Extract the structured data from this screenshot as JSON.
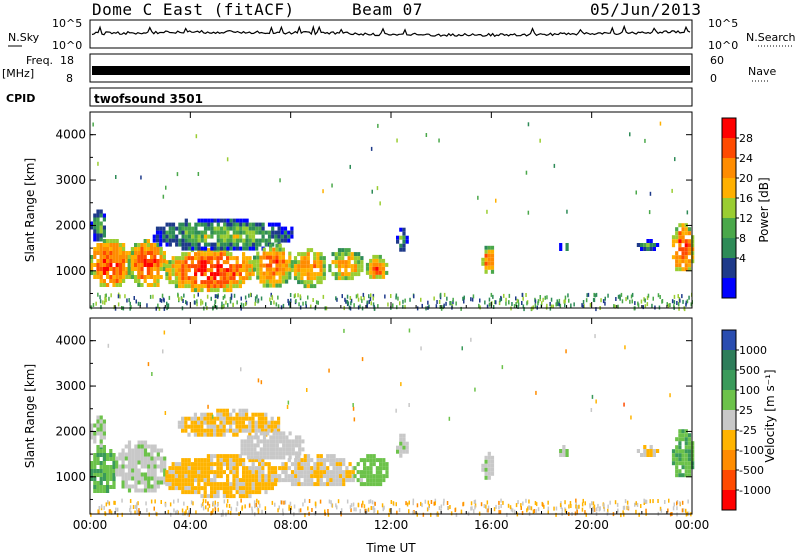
{
  "header": {
    "station": "Dome C East (fitACF)",
    "beam": "Beam 07",
    "date": "05/Jun/2013"
  },
  "top_panels": {
    "nsky_label": "N.Sky",
    "nsearch_label": "N.Search",
    "noise_ticks": [
      "10^5",
      "10^0"
    ],
    "freq_label_line1": "Freq.",
    "freq_label_line2": "[MHz]",
    "freq_ticks": [
      "18",
      "8"
    ],
    "nave_label": "Nave",
    "nave_ticks": [
      "60",
      "0"
    ],
    "cpid_label": "CPID",
    "cpid_value": "twofsound 3501"
  },
  "colorbars": {
    "power": {
      "label": "Power [dB]",
      "ticks": [
        "28",
        "24",
        "20",
        "16",
        "12",
        "8",
        "4"
      ],
      "colors": [
        "#ff0000",
        "#ff4a00",
        "#ff8c00",
        "#ffb000",
        "#9acd32",
        "#4aa84a",
        "#2e8b57",
        "#1e3a8a",
        "#0000ff"
      ]
    },
    "velocity": {
      "label": "Velocity [m s⁻¹]",
      "ticks": [
        "1000",
        "500",
        "100",
        "25",
        "-25",
        "-100",
        "-500",
        "-1000"
      ],
      "colors": [
        "#2a4db0",
        "#2e7d5a",
        "#3a9a5a",
        "#6cc24a",
        "#c8c8c8",
        "#ffb400",
        "#ff8c00",
        "#ff4a00",
        "#ff0000"
      ]
    }
  },
  "axes": {
    "y_label": "Slant Range [km]",
    "x_label": "Time UT",
    "y_ticks": [
      "1000",
      "2000",
      "3000",
      "4000"
    ],
    "x_ticks": [
      "00:00",
      "04:00",
      "08:00",
      "12:00",
      "16:00",
      "20:00",
      "00:00"
    ]
  },
  "chart_data": [
    {
      "type": "heatmap",
      "name": "power",
      "xlabel": "Time UT",
      "ylabel": "Slant Range [km]",
      "xlim": [
        0,
        24
      ],
      "ylim": [
        180,
        4500
      ],
      "colorbar_label": "Power [dB]",
      "colorbar_range": [
        0,
        30
      ],
      "blobs": [
        {
          "t0": 0.0,
          "t1": 1.6,
          "r0": 650,
          "r1": 1700,
          "p": 26
        },
        {
          "t0": 0.0,
          "t1": 0.6,
          "r0": 1700,
          "r1": 2350,
          "p": 13
        },
        {
          "t0": 1.5,
          "t1": 3.0,
          "r0": 700,
          "r1": 1700,
          "p": 25
        },
        {
          "t0": 3.0,
          "t1": 6.5,
          "r0": 600,
          "r1": 1500,
          "p": 27
        },
        {
          "t0": 2.5,
          "t1": 8.0,
          "r0": 1500,
          "r1": 2150,
          "p": 14
        },
        {
          "t0": 6.5,
          "t1": 8.0,
          "r0": 700,
          "r1": 1600,
          "p": 24
        },
        {
          "t0": 8.0,
          "t1": 9.4,
          "r0": 700,
          "r1": 1500,
          "p": 23
        },
        {
          "t0": 9.5,
          "t1": 10.8,
          "r0": 800,
          "r1": 1500,
          "p": 22
        },
        {
          "t0": 11.0,
          "t1": 11.8,
          "r0": 850,
          "r1": 1350,
          "p": 24
        },
        {
          "t0": 12.2,
          "t1": 12.6,
          "r0": 1500,
          "r1": 1950,
          "p": 13
        },
        {
          "t0": 15.6,
          "t1": 16.1,
          "r0": 1000,
          "r1": 1550,
          "p": 24
        },
        {
          "t0": 18.7,
          "t1": 19.0,
          "r0": 1450,
          "r1": 1700,
          "p": 14
        },
        {
          "t0": 21.8,
          "t1": 22.6,
          "r0": 1500,
          "r1": 1700,
          "p": 13
        },
        {
          "t0": 23.2,
          "t1": 24.0,
          "r0": 1000,
          "r1": 2050,
          "p": 26
        }
      ]
    },
    {
      "type": "heatmap",
      "name": "velocity",
      "xlabel": "Time UT",
      "ylabel": "Slant Range [km]",
      "xlim": [
        0,
        24
      ],
      "ylim": [
        180,
        4500
      ],
      "colorbar_label": "Velocity [m s⁻¹]",
      "colorbar_range": [
        -1000,
        1000
      ],
      "blobs": [
        {
          "t0": 0.0,
          "t1": 1.0,
          "r0": 650,
          "r1": 1700,
          "v": 300
        },
        {
          "t0": 0.0,
          "t1": 0.6,
          "r0": 1700,
          "r1": 2350,
          "v": 80
        },
        {
          "t0": 1.0,
          "t1": 3.0,
          "r0": 700,
          "r1": 1800,
          "v": 60
        },
        {
          "t0": 3.0,
          "t1": 7.5,
          "r0": 600,
          "r1": 1500,
          "v": -150
        },
        {
          "t0": 3.5,
          "t1": 7.5,
          "r0": 1900,
          "r1": 2500,
          "v": -120
        },
        {
          "t0": 6.0,
          "t1": 8.5,
          "r0": 1400,
          "r1": 2000,
          "v": 10
        },
        {
          "t0": 7.5,
          "t1": 10.5,
          "r0": 800,
          "r1": 1500,
          "v": -80
        },
        {
          "t0": 10.5,
          "t1": 11.8,
          "r0": 850,
          "r1": 1500,
          "v": 200
        },
        {
          "t0": 12.2,
          "t1": 12.6,
          "r0": 1450,
          "r1": 1950,
          "v": 70
        },
        {
          "t0": 15.6,
          "t1": 16.1,
          "r0": 1000,
          "r1": 1550,
          "v": 70
        },
        {
          "t0": 18.7,
          "t1": 19.0,
          "r0": 1450,
          "r1": 1700,
          "v": 80
        },
        {
          "t0": 21.8,
          "t1": 22.6,
          "r0": 1500,
          "r1": 1700,
          "v": -100
        },
        {
          "t0": 23.2,
          "t1": 24.0,
          "r0": 1000,
          "r1": 2050,
          "v": 300
        }
      ]
    }
  ]
}
